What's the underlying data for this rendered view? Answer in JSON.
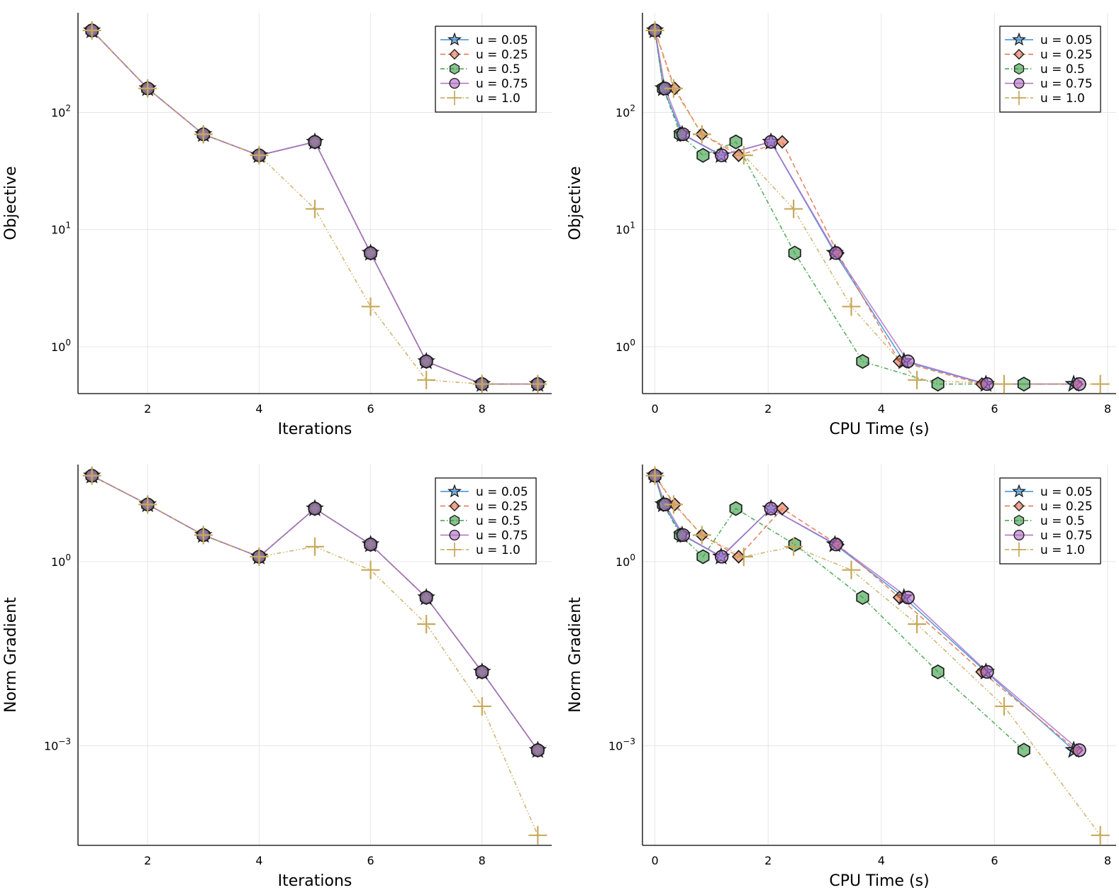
{
  "legend_labels": [
    "u = 0.05",
    "u = 0.25",
    "u = 0.5",
    "u = 0.75",
    "u = 1.0"
  ],
  "series_style": [
    {
      "color": "#3a8fd6",
      "marker": "star",
      "dash": "solid"
    },
    {
      "color": "#e3724e",
      "marker": "diamond",
      "dash": "dash"
    },
    {
      "color": "#3a9f45",
      "marker": "hexagon",
      "dash": "dashdot"
    },
    {
      "color": "#b16cc6",
      "marker": "circle",
      "dash": "solid"
    },
    {
      "color": "#c7a95a",
      "marker": "cross",
      "dash": "dashdotdot"
    }
  ],
  "chart_data": [
    {
      "id": "objective-vs-iterations",
      "type": "line",
      "title": "",
      "xlabel": "Iterations",
      "ylabel": "Objective",
      "yscale": "log",
      "xlim": [
        0.75,
        9.25
      ],
      "ylim_log10": [
        -0.4,
        2.85
      ],
      "xticks": [
        2,
        4,
        6,
        8
      ],
      "yticks_exp": [
        "2",
        "1",
        "0"
      ],
      "legend": "top-right",
      "grid": true,
      "series": [
        {
          "name": "u = 0.05",
          "x": [
            1,
            2,
            3,
            4,
            5,
            6,
            7,
            8,
            9
          ],
          "y": [
            500,
            160,
            65,
            43,
            56,
            6.3,
            0.75,
            0.48,
            0.48
          ]
        },
        {
          "name": "u = 0.25",
          "x": [
            1,
            2,
            3,
            4,
            5,
            6,
            7,
            8,
            9
          ],
          "y": [
            500,
            160,
            65,
            43,
            56,
            6.3,
            0.75,
            0.48,
            0.48
          ]
        },
        {
          "name": "u = 0.5",
          "x": [
            1,
            2,
            3,
            4,
            5,
            6,
            7,
            8,
            9
          ],
          "y": [
            500,
            160,
            65,
            43,
            56,
            6.3,
            0.75,
            0.48,
            0.48
          ]
        },
        {
          "name": "u = 0.75",
          "x": [
            1,
            2,
            3,
            4,
            5,
            6,
            7,
            8,
            9
          ],
          "y": [
            500,
            160,
            65,
            43,
            56,
            6.3,
            0.75,
            0.48,
            0.48
          ]
        },
        {
          "name": "u = 1.0",
          "x": [
            1,
            2,
            3,
            4,
            5,
            6,
            7,
            8,
            9
          ],
          "y": [
            500,
            160,
            65,
            43,
            15,
            2.2,
            0.52,
            0.48,
            0.48
          ]
        }
      ]
    },
    {
      "id": "objective-vs-cpu-time",
      "type": "line",
      "title": "",
      "xlabel": "CPU Time (s)",
      "ylabel": "Objective",
      "yscale": "log",
      "xlim": [
        -0.22,
        8.15
      ],
      "ylim_log10": [
        -0.4,
        2.85
      ],
      "xticks": [
        0,
        2,
        4,
        6,
        8
      ],
      "yticks_exp": [
        "2",
        "1",
        "0"
      ],
      "legend": "top-right",
      "grid": true,
      "series": [
        {
          "name": "u = 0.05",
          "x": [
            0,
            0.15,
            0.48,
            1.17,
            2.05,
            3.18,
            4.4,
            5.85,
            7.4
          ],
          "y": [
            500,
            160,
            65,
            43,
            56,
            6.3,
            0.75,
            0.48,
            0.48
          ]
        },
        {
          "name": "u = 0.25",
          "x": [
            0,
            0.35,
            0.83,
            1.48,
            2.25,
            3.23,
            4.32,
            5.78,
            7.45
          ],
          "y": [
            500,
            160,
            65,
            43,
            56,
            6.3,
            0.75,
            0.48,
            0.48
          ]
        },
        {
          "name": "u = 0.5",
          "x": [
            0,
            0.15,
            0.45,
            0.85,
            1.43,
            2.47,
            3.67,
            5.0,
            6.52
          ],
          "y": [
            500,
            160,
            65,
            43,
            56,
            6.3,
            0.75,
            0.48,
            0.48
          ]
        },
        {
          "name": "u = 0.75",
          "x": [
            0,
            0.18,
            0.5,
            1.18,
            2.05,
            3.2,
            4.47,
            5.87,
            7.5
          ],
          "y": [
            500,
            160,
            65,
            43,
            56,
            6.3,
            0.75,
            0.48,
            0.48
          ]
        },
        {
          "name": "u = 1.0",
          "x": [
            0,
            0.33,
            0.83,
            1.57,
            2.45,
            3.47,
            4.63,
            6.17,
            7.87
          ],
          "y": [
            500,
            160,
            65,
            43,
            15,
            2.2,
            0.52,
            0.48,
            0.48
          ]
        }
      ]
    },
    {
      "id": "norm-gradient-vs-iterations",
      "type": "line",
      "title": "",
      "xlabel": "Iterations",
      "ylabel": "Norm Gradient",
      "yscale": "log",
      "xlim": [
        0.75,
        9.25
      ],
      "ylim_log10": [
        -4.62,
        1.58
      ],
      "xticks": [
        2,
        4,
        6,
        8
      ],
      "yticks_exp": [
        "0",
        "−3"
      ],
      "legend": "top-right",
      "grid": true,
      "series": [
        {
          "name": "u = 0.05",
          "x": [
            1,
            2,
            3,
            4,
            5,
            6,
            7,
            8,
            9
          ],
          "y": [
            25,
            8.5,
            2.7,
            1.2,
            7.3,
            1.9,
            0.26,
            0.016,
            0.00085
          ]
        },
        {
          "name": "u = 0.25",
          "x": [
            1,
            2,
            3,
            4,
            5,
            6,
            7,
            8,
            9
          ],
          "y": [
            25,
            8.5,
            2.7,
            1.2,
            7.3,
            1.9,
            0.26,
            0.016,
            0.00085
          ]
        },
        {
          "name": "u = 0.5",
          "x": [
            1,
            2,
            3,
            4,
            5,
            6,
            7,
            8,
            9
          ],
          "y": [
            25,
            8.5,
            2.7,
            1.2,
            7.3,
            1.9,
            0.26,
            0.016,
            0.00085
          ]
        },
        {
          "name": "u = 0.75",
          "x": [
            1,
            2,
            3,
            4,
            5,
            6,
            7,
            8,
            9
          ],
          "y": [
            25,
            8.5,
            2.7,
            1.2,
            7.3,
            1.9,
            0.26,
            0.016,
            0.00085
          ]
        },
        {
          "name": "u = 1.0",
          "x": [
            1,
            2,
            3,
            4,
            5,
            6,
            7,
            8,
            9
          ],
          "y": [
            25,
            8.5,
            2.7,
            1.2,
            1.75,
            0.73,
            0.096,
            0.0044,
            3.5e-05
          ]
        }
      ]
    },
    {
      "id": "norm-gradient-vs-cpu-time",
      "type": "line",
      "title": "",
      "xlabel": "CPU Time (s)",
      "ylabel": "Norm Gradient",
      "yscale": "log",
      "xlim": [
        -0.22,
        8.15
      ],
      "ylim_log10": [
        -4.62,
        1.58
      ],
      "xticks": [
        0,
        2,
        4,
        6,
        8
      ],
      "yticks_exp": [
        "0",
        "−3"
      ],
      "legend": "top-right",
      "grid": true,
      "series": [
        {
          "name": "u = 0.05",
          "x": [
            0,
            0.15,
            0.48,
            1.17,
            2.05,
            3.18,
            4.4,
            5.85,
            7.4
          ],
          "y": [
            25,
            8.5,
            2.7,
            1.2,
            7.3,
            1.9,
            0.26,
            0.016,
            0.00085
          ]
        },
        {
          "name": "u = 0.25",
          "x": [
            0,
            0.35,
            0.83,
            1.48,
            2.25,
            3.23,
            4.32,
            5.78,
            7.45
          ],
          "y": [
            25,
            8.5,
            2.7,
            1.2,
            7.3,
            1.9,
            0.26,
            0.016,
            0.00085
          ]
        },
        {
          "name": "u = 0.5",
          "x": [
            0,
            0.15,
            0.45,
            0.85,
            1.43,
            2.47,
            3.67,
            5.0,
            6.52
          ],
          "y": [
            25,
            8.5,
            2.7,
            1.2,
            7.3,
            1.9,
            0.26,
            0.016,
            0.00085
          ]
        },
        {
          "name": "u = 0.75",
          "x": [
            0,
            0.18,
            0.5,
            1.18,
            2.05,
            3.2,
            4.47,
            5.87,
            7.5
          ],
          "y": [
            25,
            8.5,
            2.7,
            1.2,
            7.3,
            1.9,
            0.26,
            0.016,
            0.00085
          ]
        },
        {
          "name": "u = 1.0",
          "x": [
            0,
            0.33,
            0.83,
            1.57,
            2.45,
            3.47,
            4.63,
            6.17,
            7.87
          ],
          "y": [
            25,
            8.5,
            2.7,
            1.2,
            1.75,
            0.73,
            0.096,
            0.0044,
            3.5e-05
          ]
        }
      ]
    }
  ]
}
